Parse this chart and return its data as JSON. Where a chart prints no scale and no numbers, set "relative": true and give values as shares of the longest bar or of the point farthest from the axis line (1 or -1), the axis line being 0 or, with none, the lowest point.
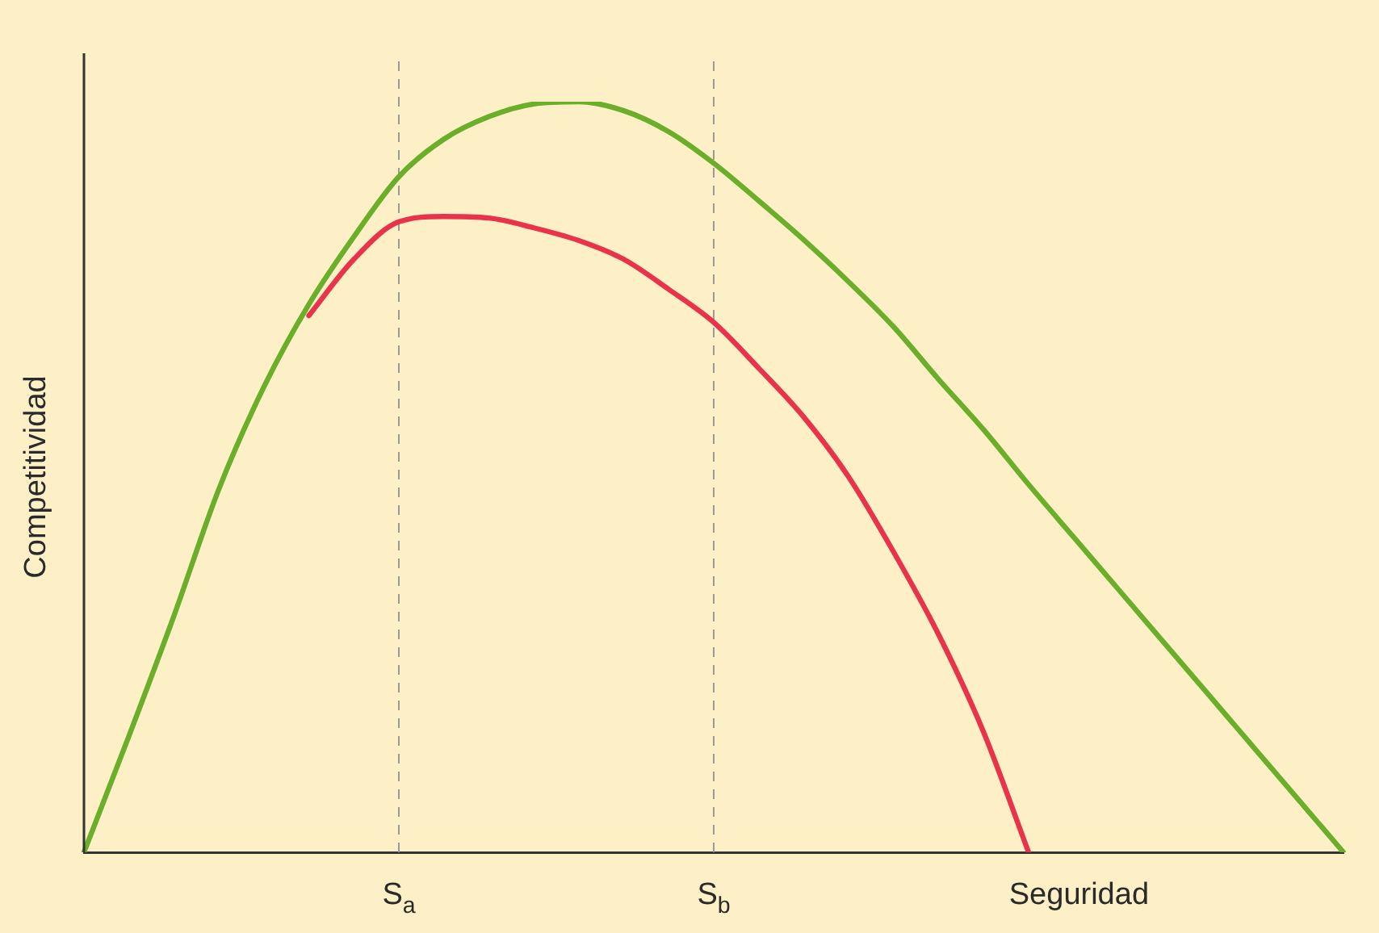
{
  "chart_data": {
    "type": "line",
    "relative": true,
    "ylabel": "Competitividad",
    "xlabel": "Seguridad",
    "categories": [
      null,
      null,
      null,
      null,
      null,
      null,
      null,
      "S$_{a}$",
      null,
      null,
      null,
      null,
      null,
      null,
      "S$_{b}$",
      null,
      null,
      null,
      null,
      null,
      null,
      null,
      null,
      null,
      null,
      null,
      null,
      null,
      null
    ],
    "ref_lines": [
      {
        "axis": "x",
        "value": "S$_{a}$",
        "color": "#9a9a9a",
        "line_style": "dashed"
      },
      {
        "axis": "x",
        "value": "S$_{b}$",
        "color": "#9a9a9a",
        "line_style": "dashed"
      }
    ],
    "grid": false,
    "legend": false,
    "marker": "none",
    "line_style": "solid",
    "series": [
      {
        "color": "#6aae2a",
        "values": [
          0,
          0.155,
          0.315,
          0.484,
          0.62,
          0.73,
          0.82,
          0.9,
          0.95,
          0.98,
          0.997,
          1,
          0.988,
          0.96,
          0.918,
          0.868,
          0.816,
          0.76,
          0.7,
          0.63,
          0.563,
          0.49,
          0.42,
          0.35,
          0.28,
          0.21,
          0.14,
          0.07,
          0
        ]
      },
      {
        "color": "#e8334a",
        "values": [
          null,
          null,
          null,
          null,
          null,
          0.715,
          0.79,
          0.84,
          0.847,
          0.845,
          0.832,
          0.815,
          0.79,
          0.75,
          0.706,
          0.645,
          0.58,
          0.5,
          0.4,
          0.29,
          0.16,
          0,
          null,
          null,
          null,
          null,
          null,
          null,
          null
        ]
      }
    ]
  }
}
